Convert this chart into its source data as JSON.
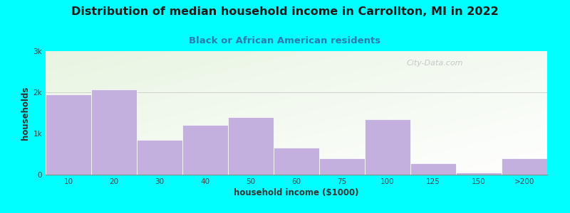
{
  "title": "Distribution of median household income in Carrollton, MI in 2022",
  "subtitle": "Black or African American residents",
  "xlabel": "household income ($1000)",
  "ylabel": "households",
  "bar_labels": [
    "10",
    "20",
    "30",
    "40",
    "50",
    "60",
    "75",
    "100",
    "125",
    "150",
    ">200"
  ],
  "bar_values": [
    1950,
    2075,
    850,
    1200,
    1400,
    650,
    400,
    1350,
    280,
    50,
    400
  ],
  "bar_color": "#C4B0DF",
  "yticks": [
    0,
    1000,
    2000,
    3000
  ],
  "ytick_labels": [
    "0",
    "1k",
    "2k",
    "3k"
  ],
  "ylim": [
    0,
    3000
  ],
  "bg_color": "#00FFFF",
  "title_fontsize": 11.5,
  "subtitle_fontsize": 9.5,
  "subtitle_color": "#2B7BB0",
  "watermark": "City-Data.com",
  "grid_color": "#D0D0D0",
  "axis_label_fontsize": 8.5,
  "tick_fontsize": 7.5
}
